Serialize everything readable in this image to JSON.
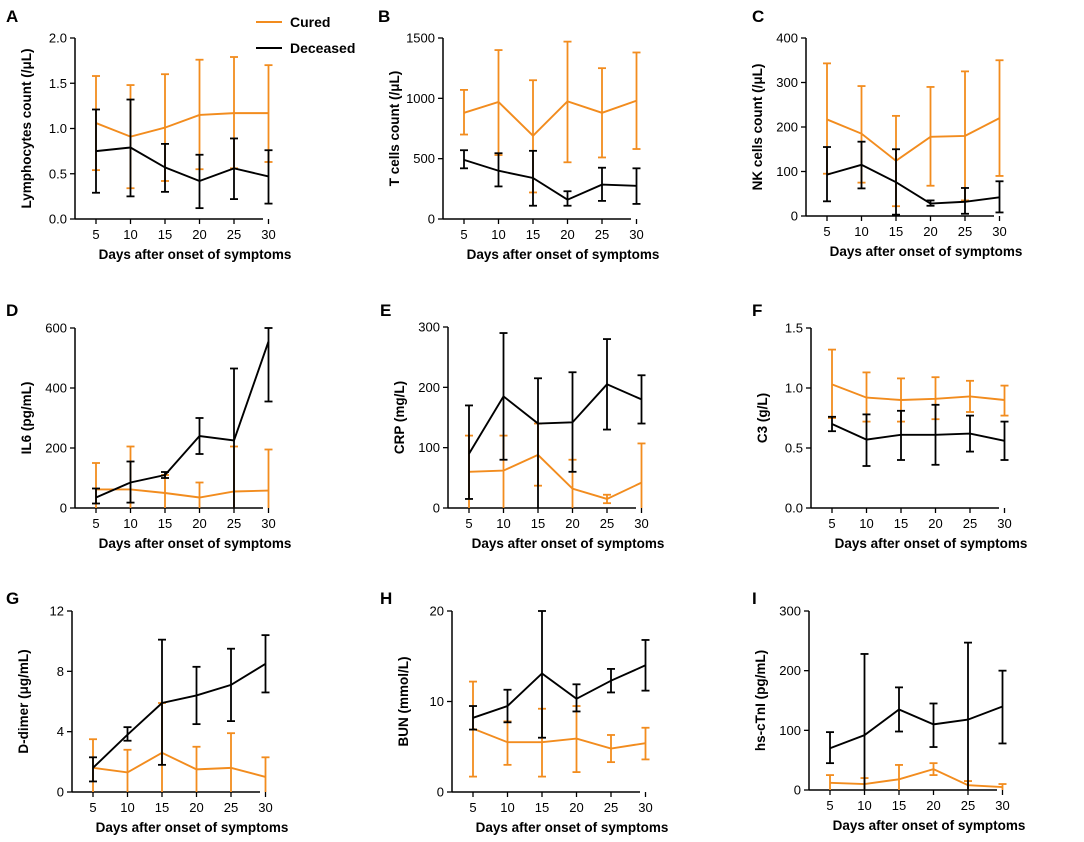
{
  "legend": {
    "entries": [
      {
        "name": "Cured",
        "color": "#F28C1E"
      },
      {
        "name": "Deceased",
        "color": "#000000"
      }
    ],
    "placement": "top, within panel A"
  },
  "colors": {
    "cured": "#F28C1E",
    "deceased": "#000000",
    "axis": "#000000"
  },
  "chart_data": [
    {
      "panel": "A",
      "type": "line",
      "ylabel": "Lymphocytes count (/μL)",
      "xlabel": "Days after onset of symptoms",
      "x": [
        5,
        10,
        15,
        20,
        25,
        30
      ],
      "ylim": [
        0,
        2.0
      ],
      "yticks": [
        "0.0",
        "0.5",
        "1.0",
        "1.5",
        "2.0"
      ],
      "series": [
        {
          "name": "Cured",
          "values": [
            1.06,
            0.91,
            1.01,
            1.15,
            1.17,
            1.17
          ],
          "lower": [
            0.54,
            0.34,
            0.42,
            0.55,
            0.56,
            0.63
          ],
          "upper": [
            1.58,
            1.48,
            1.6,
            1.76,
            1.79,
            1.7
          ]
        },
        {
          "name": "Deceased",
          "values": [
            0.75,
            0.79,
            0.57,
            0.42,
            0.56,
            0.47
          ],
          "lower": [
            0.29,
            0.25,
            0.3,
            0.12,
            0.22,
            0.17
          ],
          "upper": [
            1.21,
            1.32,
            0.83,
            0.71,
            0.89,
            0.76
          ]
        }
      ]
    },
    {
      "panel": "B",
      "type": "line",
      "ylabel": "T cells count (/μL)",
      "xlabel": "Days after onset of symptoms",
      "x": [
        5,
        10,
        15,
        20,
        25,
        30
      ],
      "ylim": [
        0,
        1500
      ],
      "yticks": [
        "0",
        "500",
        "1000",
        "1500"
      ],
      "series": [
        {
          "name": "Cured",
          "values": [
            880,
            970,
            690,
            975,
            880,
            980
          ],
          "lower": [
            700,
            530,
            220,
            470,
            510,
            580
          ],
          "upper": [
            1070,
            1400,
            1150,
            1470,
            1250,
            1380
          ]
        },
        {
          "name": "Deceased",
          "values": [
            490,
            400,
            340,
            160,
            285,
            275
          ],
          "lower": [
            420,
            270,
            110,
            110,
            150,
            125
          ],
          "upper": [
            570,
            545,
            565,
            230,
            425,
            420
          ]
        }
      ]
    },
    {
      "panel": "C",
      "type": "line",
      "ylabel": "NK cells count (/μL)",
      "xlabel": "Days after onset of symptoms",
      "x": [
        5,
        10,
        15,
        20,
        25,
        30
      ],
      "ylim": [
        0,
        400
      ],
      "yticks": [
        "0",
        "100",
        "200",
        "300",
        "400"
      ],
      "series": [
        {
          "name": "Cured",
          "values": [
            217,
            185,
            124,
            178,
            180,
            220
          ],
          "lower": [
            95,
            75,
            22,
            68,
            35,
            90
          ],
          "upper": [
            343,
            292,
            225,
            290,
            325,
            350
          ]
        },
        {
          "name": "Deceased",
          "values": [
            93,
            115,
            76,
            28,
            32,
            42
          ],
          "lower": [
            33,
            62,
            3,
            23,
            5,
            8
          ],
          "upper": [
            155,
            167,
            150,
            35,
            63,
            78
          ]
        }
      ]
    },
    {
      "panel": "D",
      "type": "line",
      "ylabel": "IL6 (pg/mL)",
      "xlabel": "Days after onset of symptoms",
      "x": [
        5,
        10,
        15,
        20,
        25,
        30
      ],
      "ylim": [
        0,
        600
      ],
      "yticks": [
        "0",
        "200",
        "400",
        "600"
      ],
      "series": [
        {
          "name": "Cured",
          "values": [
            62,
            62,
            50,
            35,
            55,
            58
          ],
          "lower": [
            0,
            0,
            0,
            0,
            0,
            0
          ],
          "upper": [
            150,
            205,
            110,
            85,
            205,
            195
          ]
        },
        {
          "name": "Deceased",
          "values": [
            35,
            85,
            110,
            240,
            225,
            555
          ],
          "lower": [
            15,
            18,
            100,
            180,
            0,
            355
          ],
          "upper": [
            65,
            155,
            120,
            300,
            465,
            600
          ]
        }
      ]
    },
    {
      "panel": "E",
      "type": "line",
      "ylabel": "CRP (mg/L)",
      "xlabel": "Days after onset of symptoms",
      "x": [
        5,
        10,
        15,
        20,
        25,
        30
      ],
      "ylim": [
        0,
        300
      ],
      "yticks": [
        "0",
        "100",
        "200",
        "300"
      ],
      "series": [
        {
          "name": "Cured",
          "values": [
            60,
            62,
            88,
            32,
            15,
            42
          ],
          "lower": [
            0,
            0,
            37,
            0,
            8,
            0
          ],
          "upper": [
            120,
            120,
            140,
            80,
            22,
            107
          ]
        },
        {
          "name": "Deceased",
          "values": [
            90,
            185,
            140,
            142,
            205,
            180
          ],
          "lower": [
            15,
            80,
            0,
            60,
            130,
            140
          ],
          "upper": [
            170,
            290,
            215,
            225,
            280,
            220
          ]
        }
      ]
    },
    {
      "panel": "F",
      "type": "line",
      "ylabel": "C3 (g/L)",
      "xlabel": "Days after onset of symptoms",
      "x": [
        5,
        10,
        15,
        20,
        25,
        30
      ],
      "ylim": [
        0,
        1.5
      ],
      "yticks": [
        "0.0",
        "0.5",
        "1.0",
        "1.5"
      ],
      "series": [
        {
          "name": "Cured",
          "values": [
            1.03,
            0.92,
            0.9,
            0.91,
            0.93,
            0.9
          ],
          "lower": [
            0.75,
            0.72,
            0.72,
            0.74,
            0.8,
            0.77
          ],
          "upper": [
            1.32,
            1.13,
            1.08,
            1.09,
            1.06,
            1.02
          ]
        },
        {
          "name": "Deceased",
          "values": [
            0.7,
            0.57,
            0.61,
            0.61,
            0.62,
            0.56
          ],
          "lower": [
            0.64,
            0.35,
            0.4,
            0.36,
            0.47,
            0.4
          ],
          "upper": [
            0.76,
            0.78,
            0.81,
            0.86,
            0.77,
            0.72
          ]
        }
      ]
    },
    {
      "panel": "G",
      "type": "line",
      "ylabel": "D-dimer (μg/mL)",
      "xlabel": "Days after onset of symptoms",
      "x": [
        5,
        10,
        15,
        20,
        25,
        30
      ],
      "ylim": [
        0,
        12
      ],
      "yticks": [
        "0",
        "4",
        "8",
        "12"
      ],
      "series": [
        {
          "name": "Cured",
          "values": [
            1.6,
            1.3,
            2.6,
            1.5,
            1.6,
            1.0
          ],
          "lower": [
            0,
            0,
            0,
            0,
            0,
            0
          ],
          "upper": [
            3.5,
            2.8,
            5.9,
            3.0,
            3.9,
            2.3
          ]
        },
        {
          "name": "Deceased",
          "values": [
            1.6,
            3.8,
            5.9,
            6.4,
            7.1,
            8.5
          ],
          "lower": [
            0.7,
            3.4,
            1.8,
            4.5,
            4.7,
            6.6
          ],
          "upper": [
            2.3,
            4.3,
            10.1,
            8.3,
            9.5,
            10.4
          ]
        }
      ]
    },
    {
      "panel": "H",
      "type": "line",
      "ylabel": "BUN (mmol/L)",
      "xlabel": "Days after onset of symptoms",
      "x": [
        5,
        10,
        15,
        20,
        25,
        30
      ],
      "ylim": [
        0,
        20
      ],
      "yticks": [
        "0",
        "10",
        "20"
      ],
      "series": [
        {
          "name": "Cured",
          "values": [
            7.0,
            5.5,
            5.5,
            5.9,
            4.8,
            5.4
          ],
          "lower": [
            1.7,
            3.0,
            1.7,
            2.2,
            3.3,
            3.6
          ],
          "upper": [
            12.2,
            7.8,
            9.2,
            9.5,
            6.3,
            7.1
          ]
        },
        {
          "name": "Deceased",
          "values": [
            8.2,
            9.5,
            13.1,
            10.3,
            12.3,
            14.0
          ],
          "lower": [
            6.9,
            7.7,
            6.0,
            8.9,
            11.0,
            11.2
          ],
          "upper": [
            9.5,
            11.3,
            20.0,
            11.9,
            13.6,
            16.8
          ]
        }
      ]
    },
    {
      "panel": "I",
      "type": "line",
      "ylabel": "hs-cTnI (pg/mL)",
      "xlabel": "Days after onset of symptoms",
      "x": [
        5,
        10,
        15,
        20,
        25,
        30
      ],
      "ylim": [
        0,
        300
      ],
      "yticks": [
        "0",
        "100",
        "200",
        "300"
      ],
      "series": [
        {
          "name": "Cured",
          "values": [
            12,
            10,
            18,
            35,
            8,
            5
          ],
          "lower": [
            0,
            0,
            0,
            25,
            0,
            0
          ],
          "upper": [
            25,
            20,
            42,
            45,
            15,
            10
          ]
        },
        {
          "name": "Deceased",
          "values": [
            70,
            92,
            135,
            110,
            118,
            140
          ],
          "lower": [
            45,
            0,
            98,
            72,
            0,
            78
          ],
          "upper": [
            97,
            228,
            172,
            145,
            247,
            200
          ]
        }
      ]
    }
  ]
}
